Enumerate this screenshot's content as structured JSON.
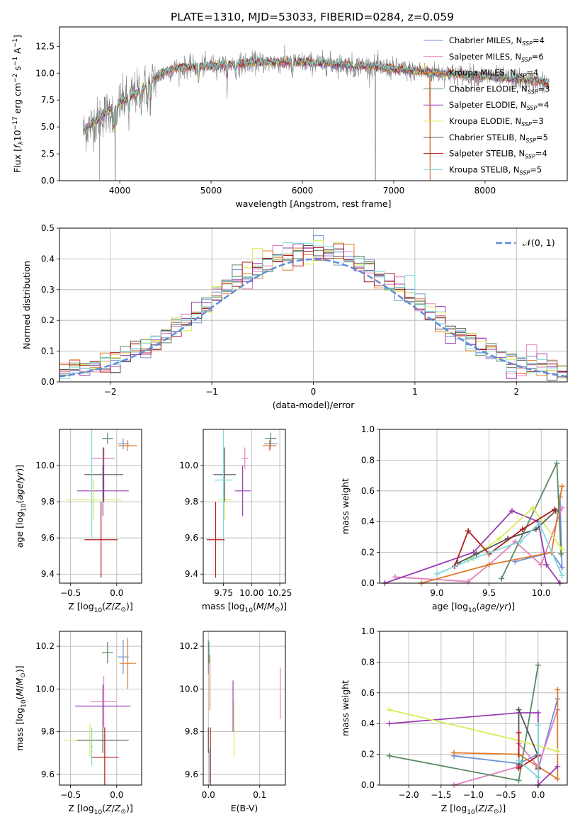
{
  "figure_title": "PLATE=1310, MJD=53033, FIBERID=0284, z=0.059",
  "models": [
    {
      "name": "Chabrier MILES",
      "nssp": "4",
      "color": "#6f8fd8"
    },
    {
      "name": "Salpeter MILES",
      "nssp": "6",
      "color": "#e37fbf"
    },
    {
      "name": "Kroupa MILES",
      "nssp": "4",
      "color": "#e07b29"
    },
    {
      "name": "Chabrier ELODIE",
      "nssp": "3",
      "color": "#5a8a64"
    },
    {
      "name": "Salpeter ELODIE",
      "nssp": "4",
      "color": "#9a3fb5"
    },
    {
      "name": "Kroupa ELODIE",
      "nssp": "3",
      "color": "#d9ec58"
    },
    {
      "name": "Chabrier STELIB",
      "nssp": "5",
      "color": "#555555"
    },
    {
      "name": "Salpeter STELIB",
      "nssp": "4",
      "color": "#b11c1c"
    },
    {
      "name": "Kroupa STELIB",
      "nssp": "5",
      "color": "#7fdada"
    }
  ],
  "chart_data": [
    {
      "id": "spectrum",
      "type": "line",
      "xlabel": "wavelength [Angstrom, rest frame]",
      "ylabel": "Flux [f_λ 10^-17 erg cm^-2 s^-1 A^-1]",
      "xlim": [
        3340,
        8900
      ],
      "ylim": [
        0,
        14.3
      ],
      "xticks": [
        4000,
        5000,
        6000,
        7000,
        8000
      ],
      "yticks": [
        0.0,
        2.5,
        5.0,
        7.5,
        10.0,
        12.5
      ],
      "ytick_labels": [
        "0.0",
        "2.5",
        "5.0",
        "7.5",
        "10.0",
        "12.5"
      ],
      "grid": false,
      "legend": "right",
      "data_color": "#7f7f7f",
      "continuum": [
        [
          3600,
          4.6
        ],
        [
          3700,
          5.3
        ],
        [
          3800,
          6.0
        ],
        [
          3900,
          6.6
        ],
        [
          4000,
          7.2
        ],
        [
          4100,
          7.7
        ],
        [
          4200,
          8.3
        ],
        [
          4300,
          8.9
        ],
        [
          4400,
          9.6
        ],
        [
          4500,
          10.1
        ],
        [
          4600,
          10.4
        ],
        [
          4800,
          10.6
        ],
        [
          5000,
          10.7
        ],
        [
          5200,
          10.8
        ],
        [
          5500,
          11.0
        ],
        [
          5800,
          11.0
        ],
        [
          6000,
          11.0
        ],
        [
          6300,
          10.9
        ],
        [
          6600,
          10.7
        ],
        [
          6800,
          10.6
        ],
        [
          7000,
          10.4
        ],
        [
          7200,
          10.2
        ],
        [
          7500,
          10.0
        ],
        [
          8000,
          9.7
        ],
        [
          8500,
          9.3
        ],
        [
          8700,
          9.1
        ]
      ],
      "data_range": [
        3600,
        8700
      ],
      "model_range": [
        3600,
        8700
      ],
      "dips": [
        [
          3934,
          2.5
        ],
        [
          3968,
          2.0
        ],
        [
          4101,
          1.8
        ],
        [
          4227,
          1.5
        ],
        [
          4305,
          2.2
        ],
        [
          4340,
          1.8
        ],
        [
          4861,
          1.5
        ],
        [
          5175,
          1.5
        ],
        [
          5270,
          0.8
        ],
        [
          5890,
          1.4
        ],
        [
          6563,
          0.8
        ]
      ],
      "spikes": [
        [
          6800,
          0.0
        ],
        [
          7400,
          0.0
        ],
        [
          3780,
          0.0
        ],
        [
          3950,
          0.0
        ]
      ]
    },
    {
      "id": "residuals",
      "type": "histogram",
      "xlabel": "(data-model)/error",
      "ylabel": "Normed distribution",
      "xlim": [
        -2.5,
        2.5
      ],
      "ylim": [
        0,
        0.5
      ],
      "xticks": [
        -2,
        -1,
        0,
        1,
        2
      ],
      "xtick_labels": [
        "−2",
        "−1",
        "0",
        "1",
        "2"
      ],
      "yticks": [
        0.0,
        0.1,
        0.2,
        0.3,
        0.4,
        0.5
      ],
      "ytick_labels": [
        "0.0",
        "0.1",
        "0.2",
        "0.3",
        "0.4",
        "0.5"
      ],
      "grid": true,
      "legend": "upper right",
      "legend_label": "𝒩(0, 1)",
      "gauss_color": "#5e8cd8",
      "bin_width": 0.1
    },
    {
      "id": "z-age",
      "type": "errorbar",
      "xlabel": "Z [log10(Z/Z⊙)]",
      "ylabel": "age [log10(age/yr)]",
      "xlim": [
        -0.62,
        0.27
      ],
      "ylim": [
        9.35,
        10.2
      ],
      "xticks": [
        -0.5,
        0.0
      ],
      "xtick_labels": [
        "−0.5",
        "0.0"
      ],
      "yticks": [
        9.4,
        9.6,
        9.8,
        10.0
      ],
      "ytick_labels": [
        "9.4",
        "9.6",
        "9.8",
        "10.0"
      ],
      "grid": true,
      "points": [
        {
          "x": 0.07,
          "xerr": 0.06,
          "y": 10.12,
          "yerr": 0.03
        },
        {
          "x": -0.15,
          "xerr": 0.13,
          "y": 10.04,
          "yerr": 0.06
        },
        {
          "x": 0.12,
          "xerr": 0.1,
          "y": 10.11,
          "yerr": 0.03
        },
        {
          "x": -0.1,
          "xerr": 0.06,
          "y": 10.15,
          "yerr": 0.03
        },
        {
          "x": -0.15,
          "xerr": 0.28,
          "y": 9.86,
          "yerr": 0.14
        },
        {
          "x": -0.25,
          "xerr": 0.3,
          "y": 9.81,
          "yerr": 0.11
        },
        {
          "x": -0.14,
          "xerr": 0.21,
          "y": 9.95,
          "yerr": 0.15
        },
        {
          "x": -0.17,
          "xerr": 0.18,
          "y": 9.59,
          "yerr": 0.21
        },
        {
          "x": -0.27,
          "xerr": 0.01,
          "y": 9.92,
          "yerr": 0.32
        }
      ]
    },
    {
      "id": "mass-age",
      "type": "errorbar",
      "xlabel": "mass [log10(M/M⊙)]",
      "ylabel": "",
      "xlim": [
        9.57,
        10.3
      ],
      "ylim": [
        9.35,
        10.2
      ],
      "xticks": [
        9.75,
        10.0,
        10.25
      ],
      "xtick_labels": [
        "9.75",
        "10.00",
        "10.25"
      ],
      "yticks": [
        9.4,
        9.6,
        9.8,
        10.0
      ],
      "ytick_labels": [
        "9.4",
        "9.6",
        "9.8",
        "10.0"
      ],
      "grid": true,
      "points": [
        {
          "x": 10.17,
          "xerr": 0.06,
          "y": 10.12,
          "yerr": 0.03
        },
        {
          "x": 9.94,
          "xerr": 0.03,
          "y": 10.04,
          "yerr": 0.06
        },
        {
          "x": 10.16,
          "xerr": 0.06,
          "y": 10.11,
          "yerr": 0.03
        },
        {
          "x": 10.17,
          "xerr": 0.05,
          "y": 10.15,
          "yerr": 0.03
        },
        {
          "x": 9.92,
          "xerr": 0.07,
          "y": 9.86,
          "yerr": 0.14
        },
        {
          "x": 9.76,
          "xerr": 0.06,
          "y": 9.81,
          "yerr": 0.11
        },
        {
          "x": 9.76,
          "xerr": 0.1,
          "y": 9.95,
          "yerr": 0.15
        },
        {
          "x": 9.68,
          "xerr": 0.08,
          "y": 9.59,
          "yerr": 0.21
        },
        {
          "x": 9.75,
          "xerr": 0.08,
          "y": 9.92,
          "yerr": 0.32
        }
      ]
    },
    {
      "id": "age-weight",
      "type": "line",
      "xlabel": "age [log10(age/yr)]",
      "ylabel": "mass weight",
      "xlim": [
        8.45,
        10.25
      ],
      "ylim": [
        0,
        1
      ],
      "xticks": [
        9.0,
        9.5,
        10.0
      ],
      "xtick_labels": [
        "9.0",
        "9.5",
        "10.0"
      ],
      "yticks": [
        0.0,
        0.2,
        0.4,
        0.6,
        0.8,
        1.0
      ],
      "ytick_labels": [
        "0.0",
        "0.2",
        "0.4",
        "0.6",
        "0.8",
        "1.0"
      ],
      "grid": true,
      "series": [
        {
          "points": [
            [
              9.75,
              0.14
            ],
            [
              10.1,
              0.2
            ],
            [
              10.2,
              0.1
            ],
            [
              10.18,
              0.56
            ]
          ]
        },
        {
          "points": [
            [
              8.6,
              0.04
            ],
            [
              9.3,
              0.01
            ],
            [
              9.5,
              0.12
            ],
            [
              9.75,
              0.27
            ],
            [
              10.0,
              0.12
            ],
            [
              10.2,
              0.49
            ]
          ]
        },
        {
          "points": [
            [
              8.85,
              0.0
            ],
            [
              9.5,
              0.12
            ],
            [
              10.1,
              0.2
            ],
            [
              10.2,
              0.63
            ]
          ]
        },
        {
          "points": [
            [
              9.62,
              0.03
            ],
            [
              10.15,
              0.78
            ],
            [
              10.19,
              0.19
            ]
          ]
        },
        {
          "points": [
            [
              8.5,
              0.0
            ],
            [
              9.35,
              0.2
            ],
            [
              9.72,
              0.47
            ],
            [
              9.97,
              0.4
            ],
            [
              10.05,
              0.12
            ],
            [
              10.18,
              0.0
            ]
          ]
        },
        {
          "points": [
            [
              9.3,
              0.15
            ],
            [
              9.6,
              0.29
            ],
            [
              9.92,
              0.49
            ],
            [
              10.2,
              0.22
            ]
          ]
        },
        {
          "points": [
            [
              9.2,
              0.13
            ],
            [
              9.38,
              0.19
            ],
            [
              9.68,
              0.29
            ],
            [
              9.95,
              0.35
            ],
            [
              10.14,
              0.47
            ]
          ]
        },
        {
          "points": [
            [
              9.17,
              0.11
            ],
            [
              9.3,
              0.34
            ],
            [
              9.5,
              0.19
            ],
            [
              9.82,
              0.35
            ],
            [
              10.13,
              0.48
            ]
          ]
        },
        {
          "points": [
            [
              9.0,
              0.06
            ],
            [
              9.35,
              0.16
            ],
            [
              9.8,
              0.27
            ],
            [
              9.98,
              0.39
            ],
            [
              10.2,
              0.05
            ]
          ]
        }
      ]
    },
    {
      "id": "z-mass",
      "type": "errorbar",
      "xlabel": "Z [log10(Z/Z⊙)]",
      "ylabel": "mass [log10(M/M⊙)]",
      "xlim": [
        -0.62,
        0.27
      ],
      "ylim": [
        9.55,
        10.27
      ],
      "xticks": [
        -0.5,
        0.0
      ],
      "xtick_labels": [
        "−0.5",
        "0.0"
      ],
      "yticks": [
        9.6,
        9.8,
        10.0,
        10.2
      ],
      "ytick_labels": [
        "9.6",
        "9.8",
        "10.0",
        "10.2"
      ],
      "grid": true,
      "points": [
        {
          "x": 0.07,
          "xerr": 0.06,
          "y": 10.15,
          "yerr": 0.08
        },
        {
          "x": -0.14,
          "xerr": 0.14,
          "y": 9.94,
          "yerr": 0.12
        },
        {
          "x": 0.12,
          "xerr": 0.09,
          "y": 10.12,
          "yerr": 0.12
        },
        {
          "x": -0.1,
          "xerr": 0.06,
          "y": 10.17,
          "yerr": 0.05
        },
        {
          "x": -0.15,
          "xerr": 0.3,
          "y": 9.92,
          "yerr": 0.1
        },
        {
          "x": -0.29,
          "xerr": 0.28,
          "y": 9.76,
          "yerr": 0.08
        },
        {
          "x": -0.15,
          "xerr": 0.28,
          "y": 9.76,
          "yerr": 0.06
        },
        {
          "x": -0.13,
          "xerr": 0.15,
          "y": 9.68,
          "yerr": 0.14
        },
        {
          "x": -0.27,
          "xerr": 0.01,
          "y": 9.73,
          "yerr": 0.09
        }
      ]
    },
    {
      "id": "ebv-mass",
      "type": "errorbar",
      "xlabel": "E(B-V)",
      "ylabel": "",
      "xlim": [
        -0.01,
        0.15
      ],
      "ylim": [
        9.55,
        10.27
      ],
      "xticks": [
        0.0,
        0.1
      ],
      "xtick_labels": [
        "0.0",
        "0.1"
      ],
      "yticks": [
        9.6,
        9.8,
        10.0,
        10.2
      ],
      "ytick_labels": [
        "9.6",
        "9.8",
        "10.0",
        "10.2"
      ],
      "grid": true,
      "points": [
        {
          "x": 0.0,
          "xerr": 0,
          "y": 10.15,
          "yerr": 0.08
        },
        {
          "x": 0.14,
          "xerr": 0,
          "y": 9.98,
          "yerr": 0.12
        },
        {
          "x": 0.003,
          "xerr": 0,
          "y": 10.03,
          "yerr": 0.13
        },
        {
          "x": 0.001,
          "xerr": 0,
          "y": 10.17,
          "yerr": 0.05
        },
        {
          "x": 0.048,
          "xerr": 0,
          "y": 9.92,
          "yerr": 0.12
        },
        {
          "x": 0.05,
          "xerr": 0,
          "y": 9.81,
          "yerr": 0.13
        },
        {
          "x": 0.0,
          "xerr": 0,
          "y": 9.76,
          "yerr": 0.06
        },
        {
          "x": 0.004,
          "xerr": 0,
          "y": 9.68,
          "yerr": 0.14
        },
        {
          "x": 0.002,
          "xerr": 0,
          "y": 9.64,
          "yerr": 0.08
        }
      ]
    },
    {
      "id": "z-weight",
      "type": "line",
      "xlabel": "Z [log10(Z/Z⊙)]",
      "ylabel": "mass weight",
      "xlim": [
        -2.45,
        0.45
      ],
      "ylim": [
        0,
        1
      ],
      "xticks": [
        -2.0,
        -1.5,
        -1.0,
        -0.5,
        0.0
      ],
      "xtick_labels": [
        "−2.0",
        "−1.5",
        "−1.0",
        "−0.5",
        "0.0"
      ],
      "yticks": [
        0.0,
        0.2,
        0.4,
        0.6,
        0.8,
        1.0
      ],
      "ytick_labels": [
        "0.0",
        "0.2",
        "0.4",
        "0.6",
        "0.8",
        "1.0"
      ],
      "grid": true,
      "series": [
        {
          "points": [
            [
              -1.3,
              0.19
            ],
            [
              -0.3,
              0.14
            ],
            [
              0.0,
              0.2
            ],
            [
              0.0,
              0.1
            ],
            [
              0.3,
              0.56
            ]
          ]
        },
        {
          "points": [
            [
              -1.3,
              0.0
            ],
            [
              -0.3,
              0.12
            ],
            [
              -0.3,
              0.27
            ],
            [
              0.0,
              0.12
            ],
            [
              0.3,
              0.49
            ]
          ]
        },
        {
          "points": [
            [
              -1.3,
              0.21
            ],
            [
              -0.3,
              0.2
            ],
            [
              0.3,
              0.04
            ],
            [
              0.3,
              0.62
            ]
          ]
        },
        {
          "points": [
            [
              -2.3,
              0.19
            ],
            [
              -0.3,
              0.03
            ],
            [
              0.0,
              0.78
            ]
          ]
        },
        {
          "points": [
            [
              -2.3,
              0.4
            ],
            [
              -0.3,
              0.47
            ],
            [
              0.0,
              0.47
            ],
            [
              0.0,
              0.0
            ],
            [
              0.3,
              0.12
            ]
          ]
        },
        {
          "points": [
            [
              -2.3,
              0.49
            ],
            [
              -0.3,
              0.29
            ],
            [
              0.3,
              0.22
            ]
          ]
        },
        {
          "points": [
            [
              -0.3,
              0.13
            ],
            [
              -0.3,
              0.49
            ],
            [
              0.0,
              0.19
            ]
          ]
        },
        {
          "points": [
            [
              -0.3,
              0.34
            ],
            [
              -0.3,
              0.11
            ],
            [
              0.0,
              0.19
            ],
            [
              0.0,
              0.11
            ]
          ]
        },
        {
          "points": [
            [
              -0.3,
              0.16
            ],
            [
              0.0,
              0.05
            ],
            [
              0.0,
              0.39
            ]
          ]
        }
      ]
    }
  ]
}
